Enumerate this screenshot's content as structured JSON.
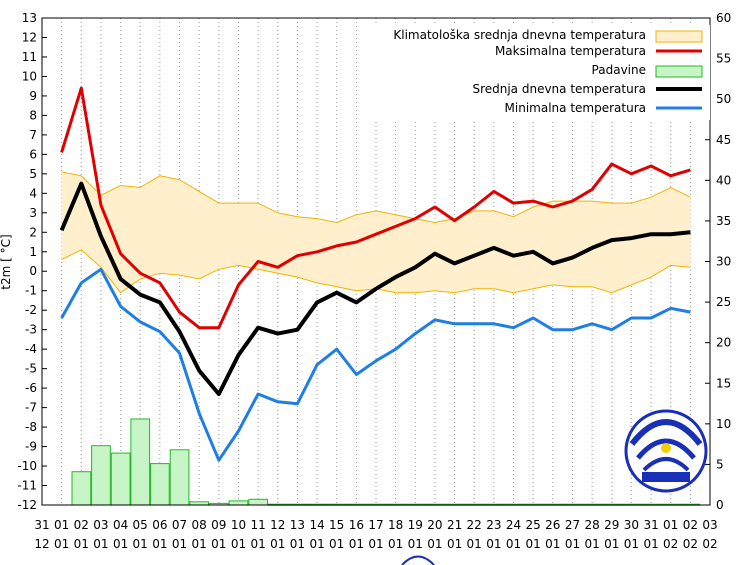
{
  "chart_data": {
    "type": "line",
    "ylabel": "t2m [ °C]",
    "ylim": [
      -12,
      13
    ],
    "y2lim": [
      0,
      60
    ],
    "y_ticks": [
      "13",
      "12",
      "11",
      "10",
      "9",
      "8",
      "7",
      "6",
      "5",
      "4",
      "3",
      "2",
      "1",
      "0",
      "-1",
      "-2",
      "-3",
      "-4",
      "-5",
      "-6",
      "-7",
      "-8",
      "-9",
      "-10",
      "-11",
      "-12"
    ],
    "y2_ticks": [
      "0",
      "5",
      "10",
      "15",
      "20",
      "25",
      "30",
      "35",
      "40",
      "45",
      "50",
      "55",
      "60"
    ],
    "x_days": [
      "31",
      "01",
      "02",
      "03",
      "04",
      "05",
      "06",
      "07",
      "08",
      "09",
      "10",
      "11",
      "12",
      "13",
      "14",
      "15",
      "16",
      "17",
      "18",
      "19",
      "20",
      "21",
      "22",
      "23",
      "24",
      "25",
      "26",
      "27",
      "28",
      "29",
      "30",
      "31",
      "01",
      "02",
      "03"
    ],
    "x_months": [
      "12",
      "01",
      "01",
      "01",
      "01",
      "01",
      "01",
      "01",
      "01",
      "01",
      "01",
      "01",
      "01",
      "01",
      "01",
      "01",
      "01",
      "01",
      "01",
      "01",
      "01",
      "01",
      "01",
      "01",
      "01",
      "01",
      "01",
      "01",
      "01",
      "01",
      "01",
      "01",
      "02",
      "02",
      "02"
    ],
    "grid": "vertical dotted",
    "legend_position": "top-right",
    "series": [
      {
        "name": "Klimatološka srednja dnevna temperatura",
        "kind": "band",
        "color": "#ffefcc",
        "edge_color": "#f0b400",
        "upper": [
          5.1,
          4.9,
          3.9,
          4.4,
          4.3,
          4.9,
          4.7,
          4.1,
          3.5,
          3.5,
          3.5,
          3.0,
          2.8,
          2.7,
          2.5,
          2.9,
          3.1,
          2.9,
          2.7,
          2.5,
          2.7,
          3.1,
          3.1,
          2.8,
          3.3,
          3.6,
          3.6,
          3.6,
          3.5,
          3.5,
          3.8,
          4.3,
          3.8
        ],
        "lower": [
          0.6,
          1.1,
          0.2,
          -1.1,
          -0.4,
          -0.1,
          -0.2,
          -0.4,
          0.1,
          0.3,
          0.1,
          -0.1,
          -0.3,
          -0.6,
          -0.8,
          -1.0,
          -0.9,
          -1.1,
          -1.1,
          -1.0,
          -1.1,
          -0.9,
          -0.9,
          -1.1,
          -0.9,
          -0.7,
          -0.8,
          -0.8,
          -1.1,
          -0.7,
          -0.3,
          0.3,
          0.2
        ]
      },
      {
        "name": "Maksimalna temperatura",
        "kind": "line",
        "color": "#e00000",
        "values": [
          6.1,
          9.4,
          3.4,
          0.9,
          -0.1,
          -0.6,
          -2.1,
          -2.9,
          -2.9,
          -0.7,
          0.5,
          0.2,
          0.8,
          1.0,
          1.3,
          1.5,
          1.9,
          2.3,
          2.7,
          3.3,
          2.6,
          3.3,
          4.1,
          3.5,
          3.6,
          3.3,
          3.6,
          4.2,
          5.5,
          5.0,
          5.4,
          4.9,
          5.2
        ]
      },
      {
        "name": "Padavine",
        "kind": "bar",
        "color": "#c8f5c8",
        "edge_color": "#22bb22",
        "values": [
          0.0,
          4.1,
          7.3,
          6.4,
          10.6,
          5.1,
          6.8,
          0.4,
          0.2,
          0.5,
          0.7,
          0.1,
          0.1,
          0.1,
          0.1,
          0.1,
          0.1,
          0.1,
          0.1,
          0.1,
          0.1,
          0.1,
          0.1,
          0.1,
          0.1,
          0.1,
          0.1,
          0.1,
          0.1,
          0.1,
          0.1,
          0.1,
          0.1
        ]
      },
      {
        "name": "Srednja dnevna temperatura",
        "kind": "line",
        "color": "#000000",
        "values": [
          2.1,
          4.5,
          1.8,
          -0.4,
          -1.2,
          -1.6,
          -3.1,
          -5.1,
          -6.3,
          -4.3,
          -2.9,
          -3.2,
          -3.0,
          -1.6,
          -1.1,
          -1.6,
          -0.9,
          -0.3,
          0.2,
          0.9,
          0.4,
          0.8,
          1.2,
          0.8,
          1.0,
          0.4,
          0.7,
          1.2,
          1.6,
          1.7,
          1.9,
          1.9,
          2.0
        ]
      },
      {
        "name": "Minimalna temperatura",
        "kind": "line",
        "color": "#1e7ee6",
        "values": [
          -2.4,
          -0.6,
          0.1,
          -1.8,
          -2.6,
          -3.1,
          -4.2,
          -7.3,
          -9.7,
          -8.2,
          -6.3,
          -6.7,
          -6.8,
          -4.8,
          -4.0,
          -5.3,
          -4.6,
          -4.0,
          -3.2,
          -2.5,
          -2.7,
          -2.7,
          -2.7,
          -2.9,
          -2.4,
          -3.0,
          -3.0,
          -2.7,
          -3.0,
          -2.4,
          -2.4,
          -1.9,
          -2.1
        ]
      }
    ]
  }
}
